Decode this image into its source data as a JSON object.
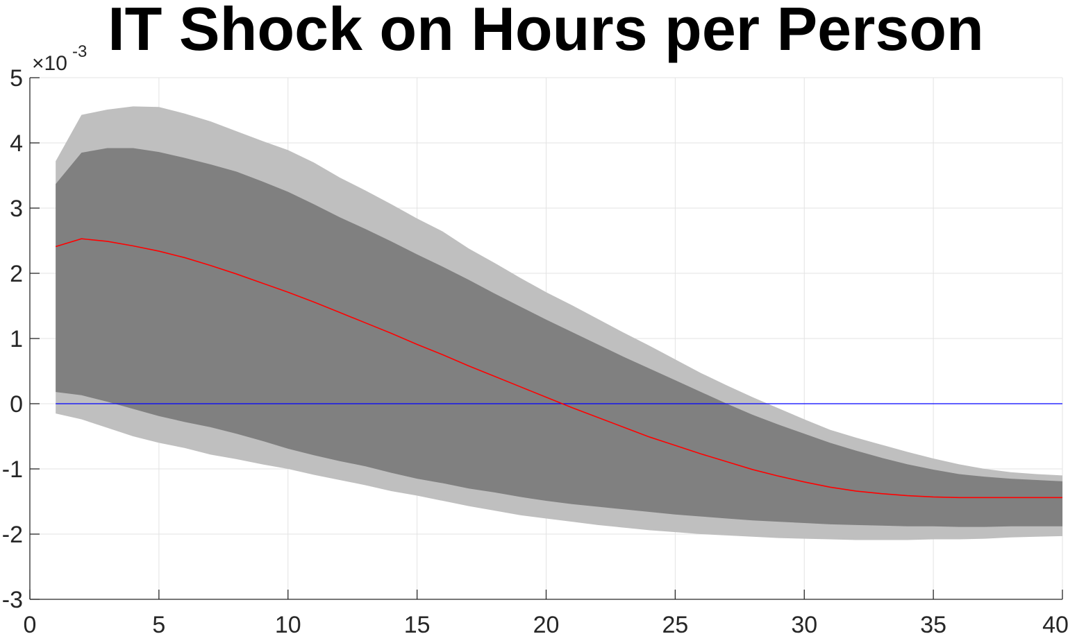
{
  "chart_data": {
    "type": "area",
    "title": "IT Shock on Hours per Person",
    "xlabel": "",
    "ylabel": "",
    "exponent_label": {
      "base": "×10",
      "power": "-3"
    },
    "xlim": [
      0,
      40
    ],
    "ylim": [
      -3,
      5
    ],
    "x_ticks": [
      0,
      5,
      10,
      15,
      20,
      25,
      30,
      35,
      40
    ],
    "y_ticks": [
      -3,
      -2,
      -1,
      0,
      1,
      2,
      3,
      4,
      5
    ],
    "grid": true,
    "colors": {
      "outer_band": "#bfbfbf",
      "inner_band": "#808080",
      "median_line": "#ff0000",
      "zero_line": "#0000ff",
      "axis": "#262626"
    },
    "x": [
      1,
      2,
      3,
      4,
      5,
      6,
      7,
      8,
      9,
      10,
      11,
      12,
      13,
      14,
      15,
      16,
      17,
      18,
      19,
      20,
      21,
      22,
      23,
      24,
      25,
      26,
      27,
      28,
      29,
      30,
      31,
      32,
      33,
      34,
      35,
      36,
      37,
      38,
      39,
      40
    ],
    "outer_upper": [
      3.72,
      4.43,
      4.51,
      4.56,
      4.55,
      4.45,
      4.33,
      4.18,
      4.03,
      3.89,
      3.7,
      3.47,
      3.27,
      3.06,
      2.84,
      2.64,
      2.38,
      2.16,
      1.93,
      1.71,
      1.51,
      1.3,
      1.09,
      0.89,
      0.68,
      0.47,
      0.28,
      0.1,
      -0.07,
      -0.24,
      -0.4,
      -0.52,
      -0.63,
      -0.74,
      -0.84,
      -0.93,
      -1.0,
      -1.05,
      -1.08,
      -1.1
    ],
    "inner_upper": [
      3.37,
      3.85,
      3.92,
      3.92,
      3.86,
      3.77,
      3.67,
      3.56,
      3.41,
      3.25,
      3.06,
      2.86,
      2.68,
      2.49,
      2.29,
      2.1,
      1.9,
      1.69,
      1.49,
      1.29,
      1.1,
      0.91,
      0.72,
      0.54,
      0.36,
      0.18,
      0.0,
      -0.17,
      -0.32,
      -0.46,
      -0.6,
      -0.72,
      -0.83,
      -0.93,
      -1.01,
      -1.08,
      -1.12,
      -1.15,
      -1.17,
      -1.19
    ],
    "median": [
      2.41,
      2.53,
      2.49,
      2.42,
      2.34,
      2.24,
      2.12,
      1.99,
      1.85,
      1.71,
      1.56,
      1.4,
      1.24,
      1.08,
      0.91,
      0.75,
      0.58,
      0.42,
      0.26,
      0.1,
      -0.06,
      -0.21,
      -0.36,
      -0.51,
      -0.64,
      -0.77,
      -0.89,
      -1.01,
      -1.11,
      -1.2,
      -1.28,
      -1.34,
      -1.38,
      -1.41,
      -1.43,
      -1.44,
      -1.44,
      -1.44,
      -1.44,
      -1.44
    ],
    "inner_lower": [
      0.18,
      0.13,
      0.03,
      -0.08,
      -0.19,
      -0.28,
      -0.36,
      -0.46,
      -0.57,
      -0.69,
      -0.79,
      -0.88,
      -0.96,
      -1.06,
      -1.15,
      -1.22,
      -1.3,
      -1.36,
      -1.43,
      -1.49,
      -1.54,
      -1.58,
      -1.62,
      -1.66,
      -1.7,
      -1.73,
      -1.76,
      -1.79,
      -1.81,
      -1.83,
      -1.85,
      -1.86,
      -1.87,
      -1.88,
      -1.88,
      -1.89,
      -1.89,
      -1.88,
      -1.88,
      -1.88
    ],
    "outer_lower": [
      -0.15,
      -0.24,
      -0.37,
      -0.5,
      -0.6,
      -0.68,
      -0.78,
      -0.85,
      -0.93,
      -1.0,
      -1.09,
      -1.17,
      -1.25,
      -1.34,
      -1.41,
      -1.49,
      -1.57,
      -1.64,
      -1.71,
      -1.76,
      -1.81,
      -1.86,
      -1.9,
      -1.94,
      -1.97,
      -2.0,
      -2.02,
      -2.04,
      -2.06,
      -2.07,
      -2.08,
      -2.09,
      -2.09,
      -2.09,
      -2.08,
      -2.08,
      -2.07,
      -2.05,
      -2.04,
      -2.03
    ],
    "zero_line": 0
  }
}
